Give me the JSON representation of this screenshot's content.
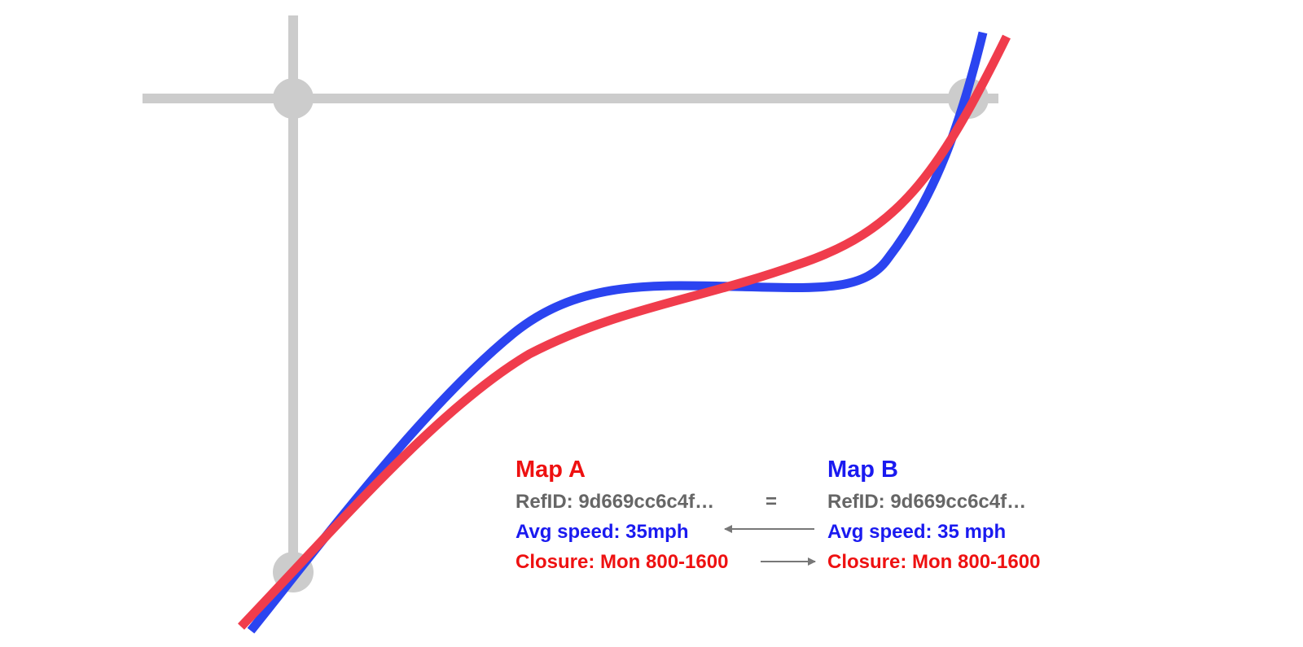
{
  "colors": {
    "road": "#cccccc",
    "map_a": "#f03c4c",
    "map_b": "#2b44f0",
    "map_a_text": "#ee1111",
    "map_b_text": "#1a1af0",
    "neutral_text": "#666666",
    "arrow": "#777777",
    "background": "#ffffff"
  },
  "map_a": {
    "title": "Map A",
    "refid": "RefID: 9d669cc6c4f…",
    "avg_speed": "Avg speed: 35mph",
    "closure": "Closure: Mon 800-1600"
  },
  "map_b": {
    "title": "Map B",
    "refid": "RefID: 9d669cc6c4f…",
    "avg_speed": "Avg speed: 35 mph",
    "closure": "Closure: Mon 800-1600"
  },
  "comparison": {
    "refid_relation": "=",
    "avg_speed_arrow": "from Map B to Map A",
    "closure_arrow": "from Map A to Map B"
  }
}
